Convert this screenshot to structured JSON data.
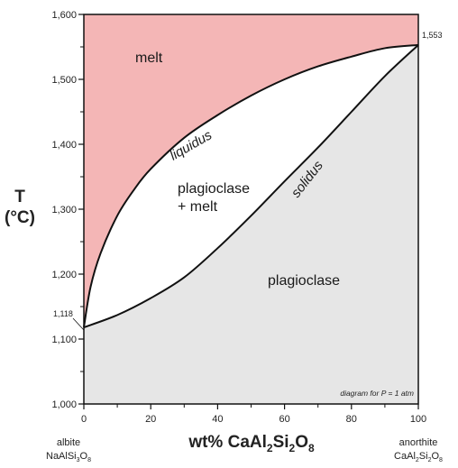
{
  "chart_data": {
    "type": "line",
    "title": "",
    "xlabel": "wt% CaAl2Si2O8",
    "ylabel": "T (°C)",
    "xlim": [
      0,
      100
    ],
    "ylim": [
      1000,
      1600
    ],
    "x_ticks": [
      "0",
      "20",
      "40",
      "60",
      "80",
      "100"
    ],
    "y_ticks": [
      "1,000",
      "1,100",
      "1,200",
      "1,300",
      "1,400",
      "1,500",
      "1,600"
    ],
    "series": [
      {
        "name": "liquidus",
        "x": [
          0,
          2,
          5,
          10,
          15,
          20,
          30,
          40,
          50,
          60,
          70,
          80,
          90,
          100
        ],
        "y": [
          1118,
          1180,
          1232,
          1290,
          1330,
          1362,
          1410,
          1445,
          1475,
          1500,
          1520,
          1535,
          1548,
          1553
        ]
      },
      {
        "name": "solidus",
        "x": [
          0,
          10,
          20,
          30,
          40,
          50,
          60,
          70,
          80,
          90,
          100
        ],
        "y": [
          1118,
          1137,
          1163,
          1195,
          1240,
          1290,
          1343,
          1395,
          1450,
          1505,
          1553
        ]
      }
    ],
    "regions": {
      "melt": "melt",
      "two_phase": "plagioclase\n+ melt",
      "solid": "plagioclase"
    },
    "annotations": {
      "liquidus": "liquidus",
      "solidus": "solidus",
      "melting_point_albite": "1,118",
      "melting_point_anorthite": "1,553",
      "pressure_note": "diagram for P = 1 atm"
    },
    "endmembers": {
      "left_name": "albite",
      "left_formula": "NaAlSi3O8",
      "right_name": "anorthite",
      "right_formula": "CaAl2Si2O8"
    },
    "y_axis_title_line1": "T",
    "y_axis_title_line2": "(°C)",
    "x_axis_title": "wt% CaAl2Si2O8",
    "colors": {
      "melt": "#f4b6b6",
      "two_phase": "#ffffff",
      "solid": "#e6e6e6",
      "line": "#111111"
    },
    "grid": false
  }
}
